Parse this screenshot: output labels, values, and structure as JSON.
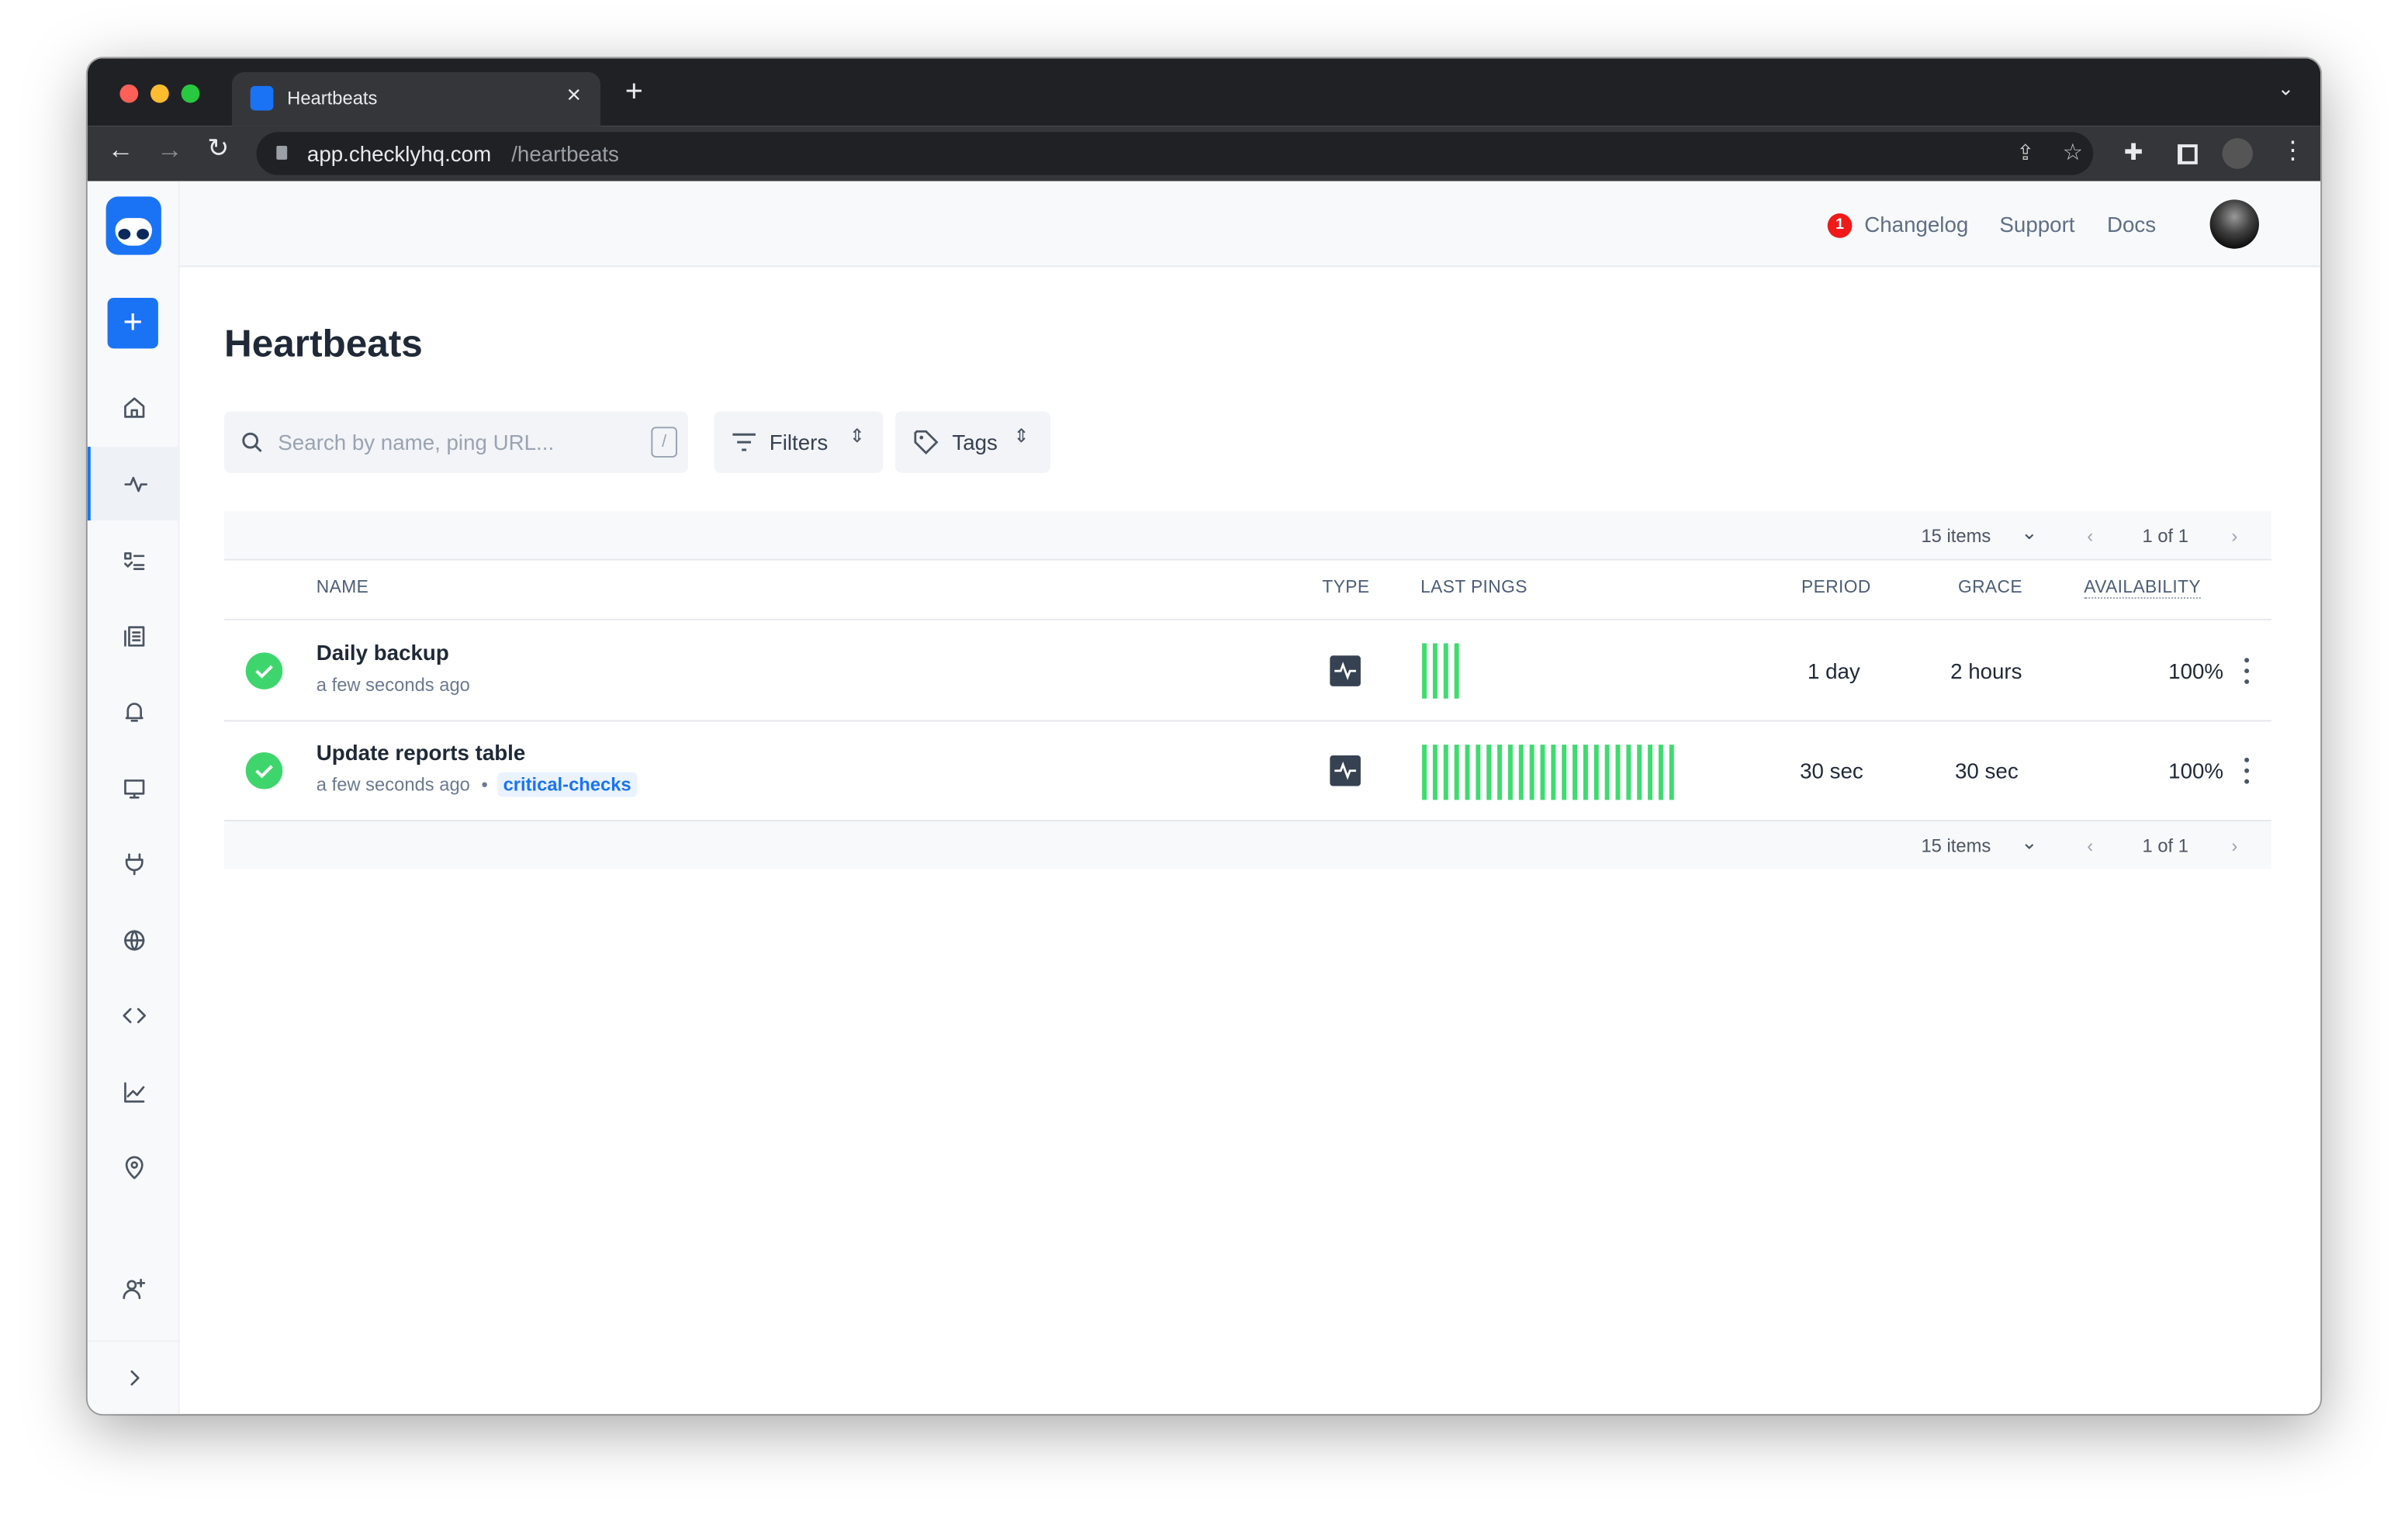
{
  "browser": {
    "tab_title": "Heartbeats",
    "url_host": "app.checklyhq.com",
    "url_path": "/heartbeats",
    "icons": [
      "back-icon",
      "forward-icon",
      "reload-icon",
      "lock-icon",
      "share-icon",
      "star-icon",
      "extensions-icon",
      "sidepanel-icon",
      "profile-avatar",
      "menu-icon"
    ]
  },
  "topbar": {
    "changelog_badge": "1",
    "changelog": "Changelog",
    "support": "Support",
    "docs": "Docs"
  },
  "sidebar": {
    "items": [
      "add",
      "home",
      "heartbeats",
      "checks",
      "check-groups",
      "alerts",
      "dashboards",
      "maintenance",
      "private-locations",
      "api",
      "reporting",
      "locations",
      "invite-users",
      "expand"
    ],
    "active": "heartbeats"
  },
  "page": {
    "title": "Heartbeats",
    "search_placeholder": "Search by name, ping URL...",
    "search_shortcut": "/",
    "filters_label": "Filters",
    "tags_label": "Tags"
  },
  "pagination": {
    "items": "15 items",
    "page": "1 of 1"
  },
  "table": {
    "columns": {
      "name": "NAME",
      "type": "TYPE",
      "last_pings": "LAST PINGS",
      "period": "PERIOD",
      "grace": "GRACE",
      "availability": "AVAILABILITY"
    },
    "rows": [
      {
        "name": "Daily backup",
        "last_ping": "a few seconds ago",
        "tag": "",
        "status": "passing",
        "ping_count": 4,
        "period": "1 day",
        "grace": "2 hours",
        "availability": "100%"
      },
      {
        "name": "Update reports table",
        "last_ping": "a few seconds ago",
        "separator": "•",
        "tag": "critical-checks",
        "status": "passing",
        "ping_count": 24,
        "period": "30 sec",
        "grace": "30 sec",
        "availability": "100%"
      }
    ]
  },
  "colors": {
    "accent": "#1a73f5",
    "success": "#3ddc6f",
    "badge": "#f01a1a"
  }
}
